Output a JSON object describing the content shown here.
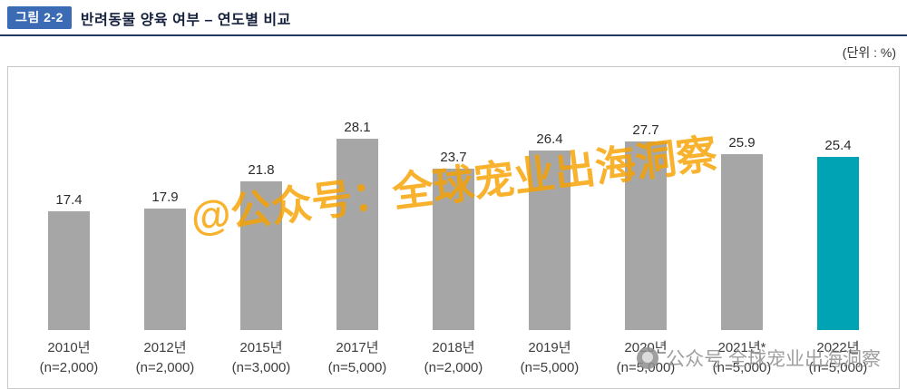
{
  "header": {
    "figure_badge": "그림 2-2",
    "title": "반려동물 양육 여부 – 연도별 비교",
    "unit_label": "(단위 : %)"
  },
  "chart_data": {
    "type": "bar",
    "title": "반려동물 양육 여부 – 연도별 비교",
    "unit": "%",
    "categories": [
      "2010년",
      "2012년",
      "2015년",
      "2017년",
      "2018년",
      "2019년",
      "2020년",
      "2021년*",
      "2022년"
    ],
    "sublabels": [
      "(n=2,000)",
      "(n=2,000)",
      "(n=3,000)",
      "(n=5,000)",
      "(n=2,000)",
      "(n=5,000)",
      "(n=5,000)",
      "(n=5,000)",
      "(n=5,000)"
    ],
    "values": [
      17.4,
      17.9,
      21.8,
      28.1,
      23.7,
      26.4,
      27.7,
      25.9,
      25.4
    ],
    "highlight_index": 8,
    "bar_colors": {
      "default": "#A6A6A6",
      "highlight": "#00A3B4"
    },
    "ylim": [
      0,
      30
    ],
    "grid": false,
    "legend": "none",
    "value_labels": "above-bars"
  },
  "watermarks": {
    "diagonal": "@公众号：全球宠业出海洞察",
    "footer": "公众号 全球宠业出海洞察"
  },
  "colors": {
    "badge_bg": "#3A6BB4",
    "header_line": "#1F3864",
    "bar_default": "#A6A6A6",
    "bar_highlight": "#00A3B4",
    "watermark_orange": "#F7A200",
    "watermark_gray": "#8f8f8f"
  }
}
